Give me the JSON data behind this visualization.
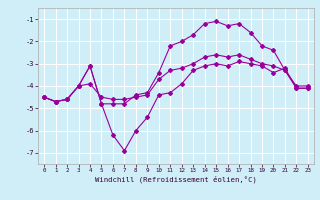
{
  "title": "",
  "xlabel": "Windchill (Refroidissement éolien,°C)",
  "ylabel": "",
  "bg_color": "#d0eef8",
  "grid_color": "#ffffff",
  "line_color": "#990099",
  "xlim": [
    -0.5,
    23.5
  ],
  "ylim": [
    -7.5,
    -0.5
  ],
  "yticks": [
    -7,
    -6,
    -5,
    -4,
    -3,
    -2,
    -1
  ],
  "xticks": [
    0,
    1,
    2,
    3,
    4,
    5,
    6,
    7,
    8,
    9,
    10,
    11,
    12,
    13,
    14,
    15,
    16,
    17,
    18,
    19,
    20,
    21,
    22,
    23
  ],
  "line1_x": [
    0,
    1,
    2,
    3,
    4,
    5,
    6,
    7,
    8,
    9,
    10,
    11,
    12,
    13,
    14,
    15,
    16,
    17,
    18,
    19,
    20,
    21,
    22,
    23
  ],
  "line1_y": [
    -4.5,
    -4.7,
    -4.6,
    -4.0,
    -3.1,
    -4.8,
    -6.2,
    -6.9,
    -6.0,
    -5.4,
    -4.4,
    -4.3,
    -3.9,
    -3.3,
    -3.1,
    -3.0,
    -3.1,
    -2.9,
    -3.0,
    -3.1,
    -3.4,
    -3.2,
    -4.1,
    -4.1
  ],
  "line2_x": [
    0,
    1,
    2,
    3,
    4,
    5,
    6,
    7,
    8,
    9,
    10,
    11,
    12,
    13,
    14,
    15,
    16,
    17,
    18,
    19,
    20,
    21,
    22,
    23
  ],
  "line2_y": [
    -4.5,
    -4.7,
    -4.6,
    -4.0,
    -3.1,
    -4.8,
    -4.8,
    -4.8,
    -4.4,
    -4.3,
    -3.4,
    -2.2,
    -2.0,
    -1.7,
    -1.2,
    -1.1,
    -1.3,
    -1.2,
    -1.6,
    -2.2,
    -2.4,
    -3.3,
    -4.1,
    -4.1
  ],
  "line3_x": [
    0,
    1,
    2,
    3,
    4,
    5,
    6,
    7,
    8,
    9,
    10,
    11,
    12,
    13,
    14,
    15,
    16,
    17,
    18,
    19,
    20,
    21,
    22,
    23
  ],
  "line3_y": [
    -4.5,
    -4.7,
    -4.6,
    -4.0,
    -3.9,
    -4.5,
    -4.6,
    -4.6,
    -4.5,
    -4.4,
    -3.7,
    -3.3,
    -3.2,
    -3.0,
    -2.7,
    -2.6,
    -2.7,
    -2.6,
    -2.8,
    -3.0,
    -3.1,
    -3.3,
    -4.0,
    -4.0
  ],
  "figwidth": 3.2,
  "figheight": 2.0,
  "dpi": 100
}
